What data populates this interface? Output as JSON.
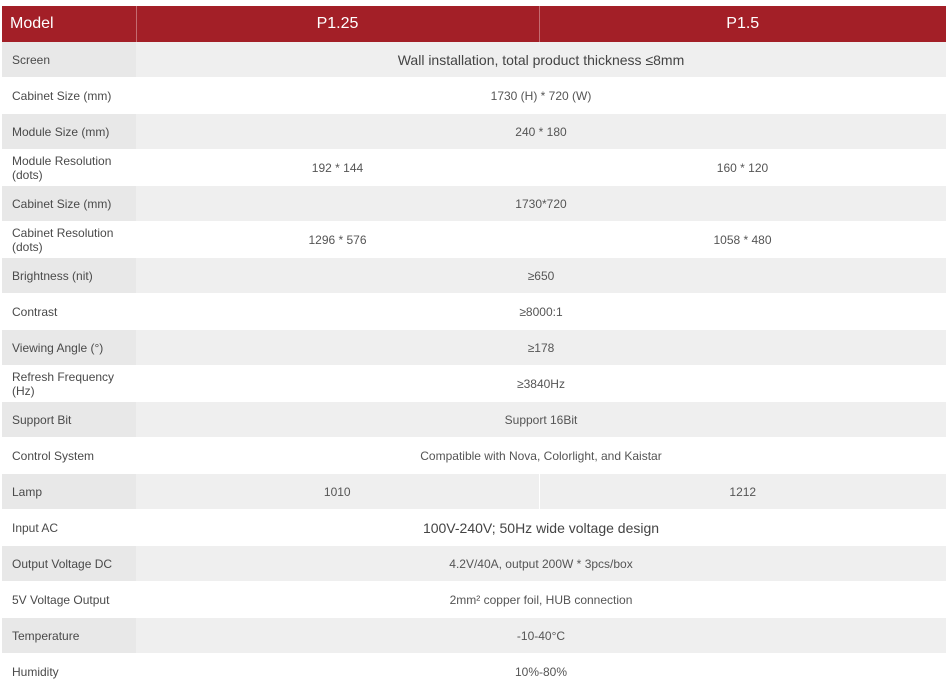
{
  "header": {
    "model": "Model",
    "p125": "P1.25",
    "p15": "P1.5"
  },
  "rows": [
    {
      "label": "Screen",
      "value": "Wall installation, total product thickness ≤8mm"
    },
    {
      "label": "Cabinet Size (mm)",
      "value": "1730 (H) * 720 (W)"
    },
    {
      "label": "Module Size (mm)",
      "value": "240 * 180"
    },
    {
      "label": "Module Resolution (dots)",
      "p125": "192 * 144",
      "p15": "160 * 120"
    },
    {
      "label": "Cabinet Size (mm)",
      "value": "1730*720"
    },
    {
      "label": "Cabinet Resolution (dots)",
      "p125": "1296 * 576",
      "p15": "1058 * 480"
    },
    {
      "label": "Brightness (nit)",
      "value": "≥650"
    },
    {
      "label": "Contrast",
      "value": "≥8000:1"
    },
    {
      "label": "Viewing Angle (°)",
      "value": "≥178"
    },
    {
      "label": "Refresh Frequency (Hz)",
      "value": "≥3840Hz"
    },
    {
      "label": "Support Bit",
      "value": "Support 16Bit"
    },
    {
      "label": "Control System",
      "value": "Compatible with Nova, Colorlight, and Kaistar"
    },
    {
      "label": "Lamp",
      "p125": "1010",
      "p15": "1212"
    },
    {
      "label": "Input AC",
      "value": "100V-240V; 50Hz wide voltage design"
    },
    {
      "label": "Output Voltage DC",
      "value": "4.2V/40A, output 200W * 3pcs/box"
    },
    {
      "label": "5V Voltage Output",
      "value": "2mm² copper foil, HUB connection"
    },
    {
      "label": "Temperature",
      "value": "-10-40°C"
    },
    {
      "label": "Humidity",
      "value": "10%-80%"
    }
  ]
}
